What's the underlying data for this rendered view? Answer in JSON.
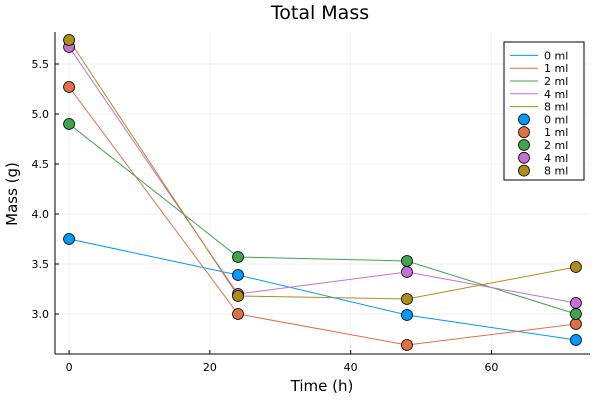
{
  "chart_data": {
    "type": "line",
    "title": "Total Mass",
    "xlabel": "Time (h)",
    "ylabel": "Mass (g)",
    "x": [
      0,
      24,
      48,
      72
    ],
    "xlim": [
      -2,
      74
    ],
    "ylim": [
      2.6,
      5.82
    ],
    "xticks": [
      0,
      20,
      40,
      60
    ],
    "xtick_labels": [
      "0",
      "20",
      "40",
      "60"
    ],
    "yticks": [
      3.0,
      3.5,
      4.0,
      4.5,
      5.0,
      5.5
    ],
    "ytick_labels": [
      "3.0",
      "3.5",
      "4.0",
      "4.5",
      "5.0",
      "5.5"
    ],
    "grid": true,
    "legend_position": "top-right",
    "series": [
      {
        "name": "0 ml",
        "color": "#009AFA",
        "values": [
          3.75,
          3.39,
          2.99,
          2.74
        ]
      },
      {
        "name": "1 ml",
        "color": "#E36F47",
        "values": [
          5.27,
          3.0,
          2.69,
          2.9
        ]
      },
      {
        "name": "2 ml",
        "color": "#3EA44E",
        "values": [
          4.9,
          3.57,
          3.53,
          3.0
        ]
      },
      {
        "name": "4 ml",
        "color": "#C371D2",
        "values": [
          5.67,
          3.2,
          3.42,
          3.11
        ]
      },
      {
        "name": "8 ml",
        "color": "#AC8E18",
        "values": [
          5.74,
          3.18,
          3.15,
          3.47
        ]
      }
    ]
  }
}
